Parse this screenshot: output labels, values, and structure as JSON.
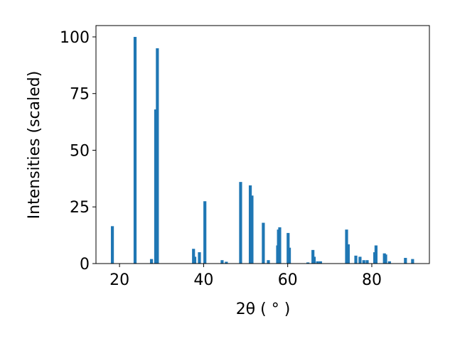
{
  "chart_data": {
    "type": "bar",
    "xlabel": "2θ ( ° )",
    "ylabel": "Intensities (scaled)",
    "x": [
      18.3,
      23.7,
      27.6,
      28.6,
      29.0,
      37.6,
      37.9,
      39.0,
      40.3,
      44.4,
      45.4,
      48.8,
      51.1,
      51.5,
      54.2,
      55.4,
      57.6,
      57.8,
      58.1,
      60.1,
      60.4,
      64.8,
      66.0,
      66.3,
      67.1,
      67.8,
      74.0,
      74.4,
      76.2,
      77.2,
      78.1,
      78.9,
      80.7,
      81.0,
      83.0,
      83.3,
      84.2,
      88.0,
      89.7
    ],
    "values": [
      16.5,
      100,
      2,
      68,
      95,
      6.5,
      3,
      5,
      27.5,
      1.5,
      0.8,
      36,
      34.5,
      30,
      18,
      1.5,
      8,
      15,
      16,
      13.5,
      7,
      0.5,
      6,
      3,
      1,
      1,
      15,
      8.5,
      3.5,
      3,
      1.5,
      1.5,
      5,
      8,
      4.5,
      4,
      1,
      2.5,
      2
    ],
    "color": "#1f77b4",
    "xlim": [
      14.4,
      93.7
    ],
    "xticks": [
      20,
      40,
      60,
      80
    ],
    "ylim": [
      0,
      105
    ],
    "yticks": [
      0,
      25,
      50,
      75,
      100
    ],
    "grid": false
  }
}
